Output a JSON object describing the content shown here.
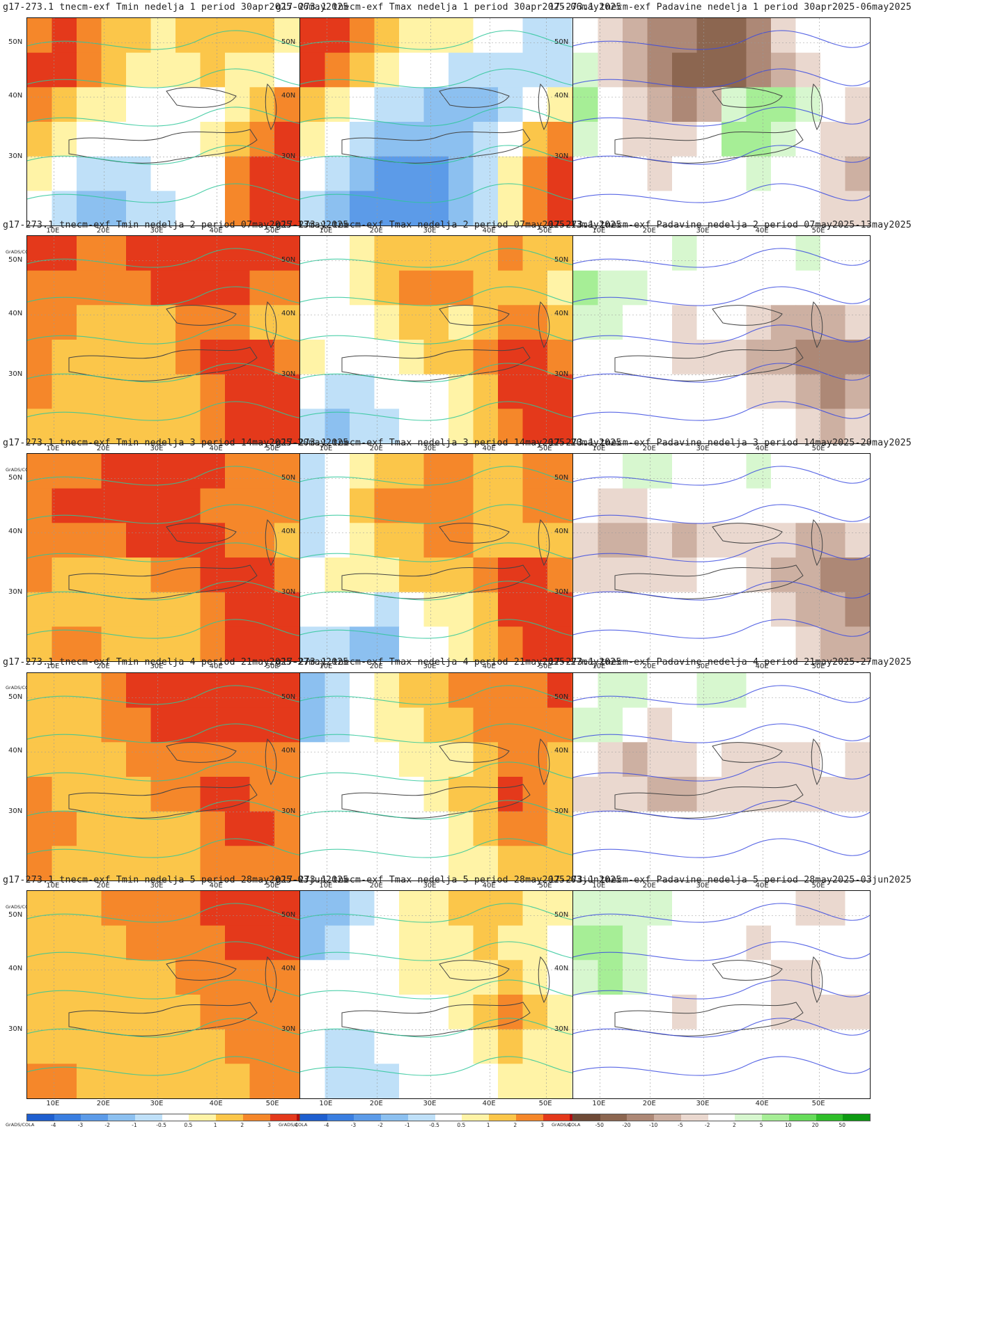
{
  "lat_labels": [
    "50N",
    "40N",
    "30N"
  ],
  "lon_labels": [
    "10E",
    "20E",
    "30E",
    "40E",
    "50E"
  ],
  "credit": "GrADS/COLA",
  "temp_scale": {
    "ticks": [
      "-4",
      "-3",
      "-2",
      "-1",
      "-0.5",
      "0.5",
      "1",
      "2",
      "3",
      "4"
    ],
    "colors": [
      "#1e5fcf",
      "#3a7ee0",
      "#5c9be8",
      "#8cc0f0",
      "#bfe0f8",
      "#ffffff",
      "#fff3a6",
      "#fbc64a",
      "#f5872a",
      "#e4391b",
      "#b10d0d"
    ]
  },
  "precip_scale": {
    "ticks": [
      "-50",
      "-20",
      "-10",
      "-5",
      "-2",
      "2",
      "5",
      "10",
      "20",
      "50"
    ],
    "colors": [
      "#6e4a36",
      "#8c6650",
      "#ad8876",
      "#cdb0a2",
      "#ead8cf",
      "#ffffff",
      "#d7f7cf",
      "#a6ee96",
      "#66dc5a",
      "#2fbe2a",
      "#0d9a12"
    ]
  },
  "rows": [
    {
      "tmin_title": "g17-273.1 tnecm-exf Tmin nedelja 1 period 30apr2025-06may2025",
      "tmax_title": "g17-273.1 tnecm-exf Tmax nedelja 1 period 30apr2025-06may2025",
      "precip_title": "17-273.1 tnecm-exf Padavine nedelja 1 period 30apr2025-06may2025",
      "tmin_levels": [
        [
          3,
          4,
          3,
          2,
          2,
          1,
          2,
          2,
          2,
          2,
          1,
          1
        ],
        [
          4,
          4,
          3,
          2,
          1,
          1,
          1,
          2,
          1,
          1,
          0,
          0
        ],
        [
          3,
          2,
          1,
          1,
          0,
          0,
          0,
          0,
          1,
          2,
          3,
          3
        ],
        [
          2,
          1,
          0,
          0,
          0,
          0,
          0,
          1,
          2,
          3,
          4,
          4
        ],
        [
          1,
          0,
          -1,
          -1,
          -1,
          0,
          0,
          0,
          3,
          4,
          4,
          4
        ],
        [
          0,
          -1,
          -2,
          -2,
          -1,
          -1,
          0,
          0,
          3,
          4,
          4,
          4
        ]
      ],
      "tmax_levels": [
        [
          4,
          4,
          3,
          2,
          1,
          1,
          1,
          0,
          0,
          -1,
          -1,
          0
        ],
        [
          4,
          3,
          2,
          1,
          0,
          0,
          -1,
          -1,
          -1,
          -1,
          -1,
          0
        ],
        [
          2,
          1,
          0,
          -1,
          -1,
          -2,
          -2,
          -2,
          -1,
          0,
          1,
          2
        ],
        [
          1,
          0,
          -1,
          -2,
          -2,
          -2,
          -2,
          -1,
          0,
          2,
          3,
          3
        ],
        [
          0,
          -1,
          -2,
          -3,
          -3,
          -3,
          -2,
          -1,
          1,
          3,
          4,
          4
        ],
        [
          -1,
          -2,
          -3,
          -3,
          -3,
          -3,
          -2,
          -1,
          1,
          3,
          4,
          4
        ]
      ],
      "precip_levels": [
        [
          0,
          -1,
          -2,
          -3,
          -3,
          -4,
          -4,
          -3,
          -1,
          0,
          0,
          0
        ],
        [
          1,
          -1,
          -2,
          -3,
          -4,
          -4,
          -4,
          -3,
          -2,
          -1,
          0,
          0
        ],
        [
          2,
          0,
          -1,
          -2,
          -3,
          -2,
          1,
          2,
          2,
          1,
          0,
          -1
        ],
        [
          1,
          0,
          -1,
          -1,
          -1,
          0,
          2,
          2,
          1,
          0,
          -1,
          -1
        ],
        [
          0,
          0,
          0,
          -1,
          0,
          0,
          0,
          1,
          0,
          0,
          -1,
          -2
        ],
        [
          0,
          0,
          0,
          0,
          0,
          0,
          0,
          0,
          0,
          0,
          -1,
          -1
        ]
      ]
    },
    {
      "tmin_title": "g17-273.1 tnecm-exf Tmin nedelja 2 period 07may2025-13may2025",
      "tmax_title": "g17-273.1 tnecm-exf Tmax nedelja 2 period 07may2025-13may2025",
      "precip_title": "17-273.1 tnecm-exf Padavine nedelja 2 period 07may2025-13may2025",
      "tmin_levels": [
        [
          4,
          4,
          3,
          3,
          4,
          4,
          4,
          4,
          4,
          4,
          4,
          4
        ],
        [
          3,
          3,
          3,
          3,
          3,
          4,
          4,
          4,
          4,
          3,
          3,
          4
        ],
        [
          3,
          3,
          2,
          2,
          2,
          2,
          3,
          3,
          3,
          2,
          2,
          3
        ],
        [
          3,
          2,
          2,
          2,
          2,
          2,
          3,
          4,
          4,
          4,
          3,
          3
        ],
        [
          3,
          2,
          2,
          2,
          2,
          2,
          2,
          3,
          4,
          4,
          4,
          4
        ],
        [
          2,
          2,
          2,
          2,
          2,
          2,
          2,
          3,
          4,
          4,
          4,
          4
        ]
      ],
      "tmax_levels": [
        [
          0,
          0,
          1,
          2,
          2,
          2,
          2,
          2,
          3,
          2,
          2,
          2
        ],
        [
          0,
          0,
          1,
          2,
          3,
          3,
          3,
          2,
          2,
          2,
          1,
          2
        ],
        [
          0,
          0,
          0,
          1,
          2,
          2,
          1,
          2,
          3,
          3,
          2,
          2
        ],
        [
          1,
          0,
          0,
          0,
          1,
          2,
          2,
          3,
          4,
          4,
          3,
          2
        ],
        [
          0,
          -1,
          -1,
          0,
          0,
          0,
          1,
          2,
          4,
          4,
          4,
          3
        ],
        [
          -1,
          -2,
          -1,
          -1,
          0,
          0,
          1,
          2,
          3,
          4,
          4,
          3
        ]
      ],
      "precip_levels": [
        [
          0,
          0,
          0,
          0,
          1,
          0,
          0,
          0,
          0,
          1,
          0,
          0
        ],
        [
          2,
          1,
          1,
          0,
          0,
          0,
          0,
          0,
          0,
          0,
          0,
          0
        ],
        [
          1,
          1,
          0,
          0,
          -1,
          0,
          0,
          -1,
          -2,
          -2,
          -2,
          -1
        ],
        [
          0,
          0,
          0,
          0,
          -1,
          -1,
          -1,
          -2,
          -2,
          -3,
          -3,
          -3
        ],
        [
          0,
          0,
          0,
          0,
          0,
          0,
          0,
          -1,
          -1,
          -2,
          -3,
          -2
        ],
        [
          0,
          0,
          0,
          0,
          0,
          0,
          0,
          0,
          0,
          -1,
          -2,
          -1
        ]
      ]
    },
    {
      "tmin_title": "g17-273.1 tnecm-exf Tmin nedelja 3 period 14may2025-20may2025",
      "tmax_title": "g17-273.1 tnecm-exf Tmax nedelja 3 period 14may2025-20may2025",
      "precip_title": "17-273.1 tnecm-exf Padavine nedelja 3 period 14may2025-20may2025",
      "tmin_levels": [
        [
          3,
          3,
          3,
          4,
          4,
          4,
          4,
          4,
          3,
          3,
          3,
          3
        ],
        [
          3,
          4,
          4,
          4,
          4,
          4,
          4,
          3,
          3,
          3,
          3,
          3
        ],
        [
          3,
          3,
          3,
          3,
          4,
          4,
          4,
          4,
          3,
          3,
          2,
          3
        ],
        [
          3,
          2,
          2,
          2,
          2,
          3,
          3,
          4,
          4,
          4,
          3,
          3
        ],
        [
          2,
          2,
          2,
          2,
          2,
          2,
          2,
          3,
          4,
          4,
          4,
          4
        ],
        [
          2,
          3,
          3,
          2,
          2,
          2,
          2,
          3,
          4,
          4,
          4,
          4
        ]
      ],
      "tmax_levels": [
        [
          -1,
          0,
          1,
          2,
          2,
          3,
          3,
          2,
          2,
          3,
          3,
          3
        ],
        [
          -1,
          0,
          2,
          3,
          3,
          3,
          3,
          2,
          2,
          3,
          3,
          3
        ],
        [
          -1,
          0,
          1,
          2,
          2,
          3,
          3,
          2,
          2,
          2,
          2,
          2
        ],
        [
          0,
          1,
          1,
          1,
          2,
          2,
          2,
          3,
          4,
          4,
          3,
          2
        ],
        [
          0,
          0,
          0,
          -1,
          0,
          1,
          1,
          2,
          4,
          4,
          4,
          3
        ],
        [
          -1,
          -1,
          -2,
          -2,
          0,
          0,
          1,
          2,
          3,
          4,
          4,
          3
        ]
      ],
      "precip_levels": [
        [
          0,
          0,
          1,
          1,
          0,
          0,
          0,
          1,
          0,
          0,
          0,
          0
        ],
        [
          0,
          -1,
          -1,
          0,
          0,
          0,
          0,
          0,
          0,
          0,
          0,
          0
        ],
        [
          -1,
          -2,
          -2,
          -1,
          -2,
          -1,
          -1,
          -1,
          -1,
          -2,
          -2,
          -1
        ],
        [
          -1,
          -1,
          -1,
          -1,
          -1,
          0,
          0,
          -1,
          -2,
          -2,
          -3,
          -3
        ],
        [
          0,
          0,
          0,
          0,
          0,
          0,
          0,
          0,
          -1,
          -2,
          -2,
          -3
        ],
        [
          0,
          0,
          0,
          0,
          0,
          0,
          0,
          0,
          0,
          -1,
          -2,
          -2
        ]
      ]
    },
    {
      "tmin_title": "g17-273.1 tnecm-exf Tmin nedelja 4 period 21may2025-27may2025",
      "tmax_title": "g17-273.1 tnecm-exf Tmax nedelja 4 period 21may2025-27may2025",
      "precip_title": "17-273.1 tnecm-exf Padavine nedelja 4 period 21may2025-27may2025",
      "tmin_levels": [
        [
          2,
          2,
          2,
          3,
          4,
          4,
          4,
          4,
          4,
          4,
          4,
          4
        ],
        [
          2,
          2,
          2,
          3,
          3,
          4,
          4,
          4,
          4,
          4,
          4,
          4
        ],
        [
          2,
          2,
          2,
          2,
          3,
          3,
          3,
          3,
          3,
          3,
          3,
          3
        ],
        [
          3,
          2,
          2,
          2,
          2,
          3,
          3,
          4,
          4,
          3,
          3,
          3
        ],
        [
          3,
          3,
          2,
          2,
          2,
          2,
          2,
          3,
          4,
          4,
          3,
          3
        ],
        [
          3,
          2,
          2,
          2,
          2,
          2,
          2,
          3,
          3,
          3,
          3,
          3
        ]
      ],
      "tmax_levels": [
        [
          -2,
          -1,
          0,
          1,
          2,
          2,
          3,
          3,
          3,
          3,
          4,
          3
        ],
        [
          -2,
          -1,
          0,
          1,
          1,
          2,
          2,
          3,
          3,
          3,
          3,
          3
        ],
        [
          0,
          0,
          0,
          0,
          1,
          1,
          1,
          2,
          3,
          3,
          2,
          2
        ],
        [
          0,
          0,
          0,
          0,
          0,
          1,
          2,
          2,
          4,
          3,
          2,
          2
        ],
        [
          0,
          0,
          0,
          0,
          0,
          0,
          1,
          2,
          3,
          3,
          2,
          2
        ],
        [
          0,
          0,
          0,
          0,
          0,
          0,
          1,
          1,
          2,
          2,
          2,
          2
        ]
      ],
      "precip_levels": [
        [
          0,
          1,
          1,
          0,
          0,
          1,
          1,
          0,
          0,
          0,
          0,
          0
        ],
        [
          1,
          1,
          0,
          -1,
          0,
          0,
          0,
          0,
          0,
          0,
          0,
          0
        ],
        [
          0,
          -1,
          -2,
          -1,
          -1,
          0,
          -1,
          -1,
          -1,
          -1,
          0,
          -1
        ],
        [
          -1,
          -1,
          -1,
          -2,
          -2,
          -1,
          -1,
          -1,
          -1,
          -1,
          -1,
          -1
        ],
        [
          0,
          0,
          0,
          0,
          0,
          0,
          0,
          0,
          0,
          0,
          0,
          0
        ],
        [
          0,
          0,
          0,
          0,
          0,
          0,
          0,
          0,
          0,
          0,
          0,
          0
        ]
      ]
    },
    {
      "tmin_title": "g17-273.1 tnecm-exf Tmin nedelja 5 period 28may2025-03jun2025",
      "tmax_title": "g17-273.1 tnecm-exf Tmax nedelja 5 period 28may2025-03jun2025",
      "precip_title": "17-273.1 tnecm-exf Padavine nedelja 5 period 28may2025-03jun2025",
      "tmin_levels": [
        [
          2,
          2,
          2,
          3,
          3,
          3,
          3,
          4,
          4,
          4,
          4,
          4
        ],
        [
          2,
          2,
          2,
          2,
          3,
          3,
          3,
          3,
          4,
          4,
          4,
          4
        ],
        [
          2,
          2,
          2,
          2,
          2,
          2,
          3,
          3,
          3,
          3,
          3,
          3
        ],
        [
          2,
          2,
          2,
          2,
          2,
          2,
          2,
          3,
          3,
          3,
          3,
          3
        ],
        [
          2,
          2,
          2,
          2,
          2,
          2,
          2,
          2,
          3,
          3,
          3,
          3
        ],
        [
          3,
          3,
          2,
          2,
          2,
          2,
          2,
          2,
          2,
          3,
          3,
          3
        ]
      ],
      "tmax_levels": [
        [
          -2,
          -2,
          -1,
          0,
          1,
          1,
          2,
          2,
          2,
          1,
          1,
          1
        ],
        [
          -2,
          -1,
          0,
          0,
          1,
          1,
          1,
          2,
          1,
          1,
          0,
          0
        ],
        [
          0,
          0,
          0,
          0,
          1,
          1,
          1,
          1,
          2,
          1,
          0,
          0
        ],
        [
          0,
          0,
          0,
          0,
          0,
          0,
          1,
          2,
          3,
          2,
          1,
          0
        ],
        [
          0,
          -1,
          -1,
          0,
          0,
          0,
          0,
          1,
          2,
          1,
          1,
          0
        ],
        [
          0,
          -1,
          -1,
          -1,
          0,
          0,
          0,
          0,
          1,
          1,
          1,
          0
        ]
      ],
      "precip_levels": [
        [
          1,
          1,
          1,
          1,
          0,
          0,
          0,
          0,
          0,
          -1,
          -1,
          0
        ],
        [
          2,
          2,
          1,
          0,
          0,
          0,
          0,
          -1,
          0,
          0,
          0,
          0
        ],
        [
          1,
          2,
          1,
          0,
          0,
          0,
          0,
          0,
          -1,
          -1,
          0,
          0
        ],
        [
          0,
          0,
          0,
          0,
          -1,
          0,
          0,
          0,
          -1,
          -1,
          -1,
          -1
        ],
        [
          0,
          0,
          0,
          0,
          0,
          0,
          0,
          0,
          0,
          0,
          0,
          0
        ],
        [
          0,
          0,
          0,
          0,
          0,
          0,
          0,
          0,
          0,
          0,
          0,
          0
        ]
      ]
    }
  ]
}
